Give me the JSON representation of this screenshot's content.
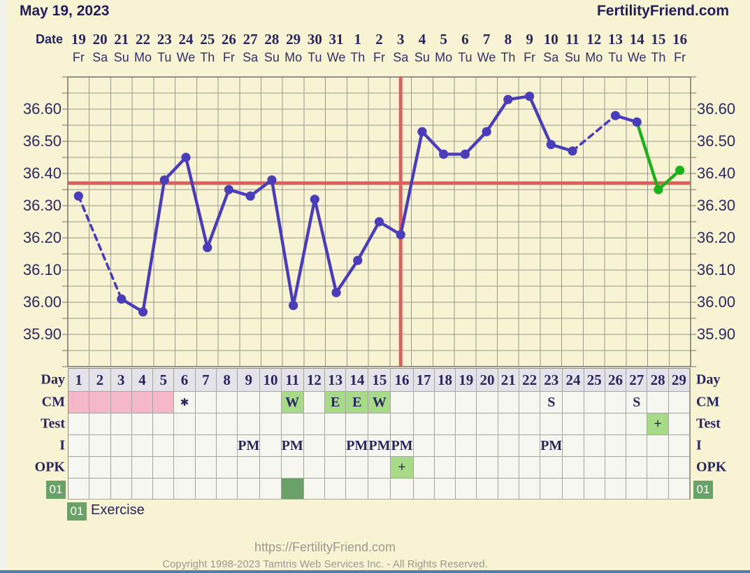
{
  "header": {
    "title": "May 19, 2023",
    "brand": "FertilityFriend.com"
  },
  "axis": {
    "date_label": "Date"
  },
  "chart_data": {
    "type": "line",
    "title": "Basal body temperature chart (°C) by cycle day",
    "cycle_days": [
      1,
      2,
      3,
      4,
      5,
      6,
      7,
      8,
      9,
      10,
      11,
      12,
      13,
      14,
      15,
      16,
      17,
      18,
      19,
      20,
      21,
      22,
      23,
      24,
      25,
      26,
      27,
      28,
      29
    ],
    "calendar_dates": [
      "19",
      "20",
      "21",
      "22",
      "23",
      "24",
      "25",
      "26",
      "27",
      "28",
      "29",
      "30",
      "31",
      "1",
      "2",
      "3",
      "4",
      "5",
      "6",
      "7",
      "8",
      "9",
      "10",
      "11",
      "12",
      "13",
      "14",
      "15",
      "16"
    ],
    "weekdays": [
      "Fr",
      "Sa",
      "Su",
      "Mo",
      "Tu",
      "We",
      "Th",
      "Fr",
      "Sa",
      "Su",
      "Mo",
      "Tu",
      "We",
      "Th",
      "Fr",
      "Sa",
      "Su",
      "Mo",
      "Tu",
      "We",
      "Th",
      "Fr",
      "Sa",
      "Su",
      "Mo",
      "Tu",
      "We",
      "Th",
      "Fr"
    ],
    "series": [
      {
        "name": "temperature",
        "values": [
          36.33,
          null,
          36.01,
          35.97,
          36.38,
          36.45,
          36.17,
          36.35,
          36.33,
          36.38,
          35.99,
          36.32,
          36.03,
          36.13,
          36.25,
          36.21,
          36.53,
          36.46,
          36.46,
          36.53,
          36.63,
          36.64,
          36.49,
          36.47,
          null,
          36.58,
          36.56,
          36.35,
          36.41
        ]
      }
    ],
    "missing_data_days": [
      2,
      25
    ],
    "recent_from_day": 28,
    "coverline_temp": 36.37,
    "ovulation_crosshair_day": 16,
    "ylim": [
      35.8,
      36.7
    ],
    "y_grid_step": 0.05,
    "y_tick_labels": [
      "36.60",
      "36.50",
      "36.40",
      "36.30",
      "36.20",
      "36.10",
      "36.00",
      "35.90"
    ],
    "grid": "on",
    "colors": {
      "line": "#4a3dba",
      "recent_line": "#19b319",
      "crosshair": "#e05d5d",
      "grid": "#97978e",
      "plot_border": "#7b7b76"
    }
  },
  "table": {
    "left_labels": [
      "Day",
      "CM",
      "Test",
      "I",
      "OPK"
    ],
    "right_labels": [
      "Day",
      "CM",
      "Test",
      "I",
      "OPK"
    ],
    "custom_row_badge": "01",
    "cm": [
      "menses",
      "menses",
      "menses",
      "menses",
      "menses",
      "*",
      "",
      "",
      "",
      "",
      "W",
      "",
      "E",
      "E",
      "W",
      "",
      "",
      "",
      "",
      "",
      "",
      "",
      "S",
      "",
      "",
      "",
      "S",
      "",
      ""
    ],
    "cm_green_letters": [
      "W",
      "E"
    ],
    "test": [
      "",
      "",
      "",
      "",
      "",
      "",
      "",
      "",
      "",
      "",
      "",
      "",
      "",
      "",
      "",
      "",
      "",
      "",
      "",
      "",
      "",
      "",
      "",
      "",
      "",
      "",
      "",
      "+",
      ""
    ],
    "intercourse": [
      "",
      "",
      "",
      "",
      "",
      "",
      "",
      "",
      "PM",
      "",
      "PM",
      "",
      "",
      "PM",
      "PM",
      "PM",
      "",
      "",
      "",
      "",
      "",
      "",
      "PM",
      "",
      "",
      "",
      "",
      "",
      ""
    ],
    "opk": [
      "",
      "",
      "",
      "",
      "",
      "",
      "",
      "",
      "",
      "",
      "",
      "",
      "",
      "",
      "",
      "+",
      "",
      "",
      "",
      "",
      "",
      "",
      "",
      "",
      "",
      "",
      "",
      "",
      ""
    ],
    "custom": [
      "",
      "",
      "",
      "",
      "",
      "",
      "",
      "",
      "",
      "",
      "fill",
      "",
      "",
      "",
      "",
      "",
      "",
      "",
      "",
      "",
      "",
      "",
      "",
      "",
      "",
      "",
      "",
      "",
      ""
    ]
  },
  "legend": {
    "badge": "01",
    "label": "Exercise"
  },
  "footer": {
    "url": "https://FertilityFriend.com",
    "copyright": "Copyright 1998-2023 Tamtris Web Services Inc. - All Rights Reserved."
  },
  "palette": {
    "background": "#f8f3d3",
    "navy_text": "#28265f",
    "menses_pink": "#f5b8ca",
    "marker_green": "#a7db88",
    "dark_green": "#69a168",
    "header_cell": "#e4e3e9",
    "cell_bg": "#f7f7f1",
    "footer_gray": "#9a9a91",
    "bottom_bar_blue": "#4e7fb1"
  }
}
